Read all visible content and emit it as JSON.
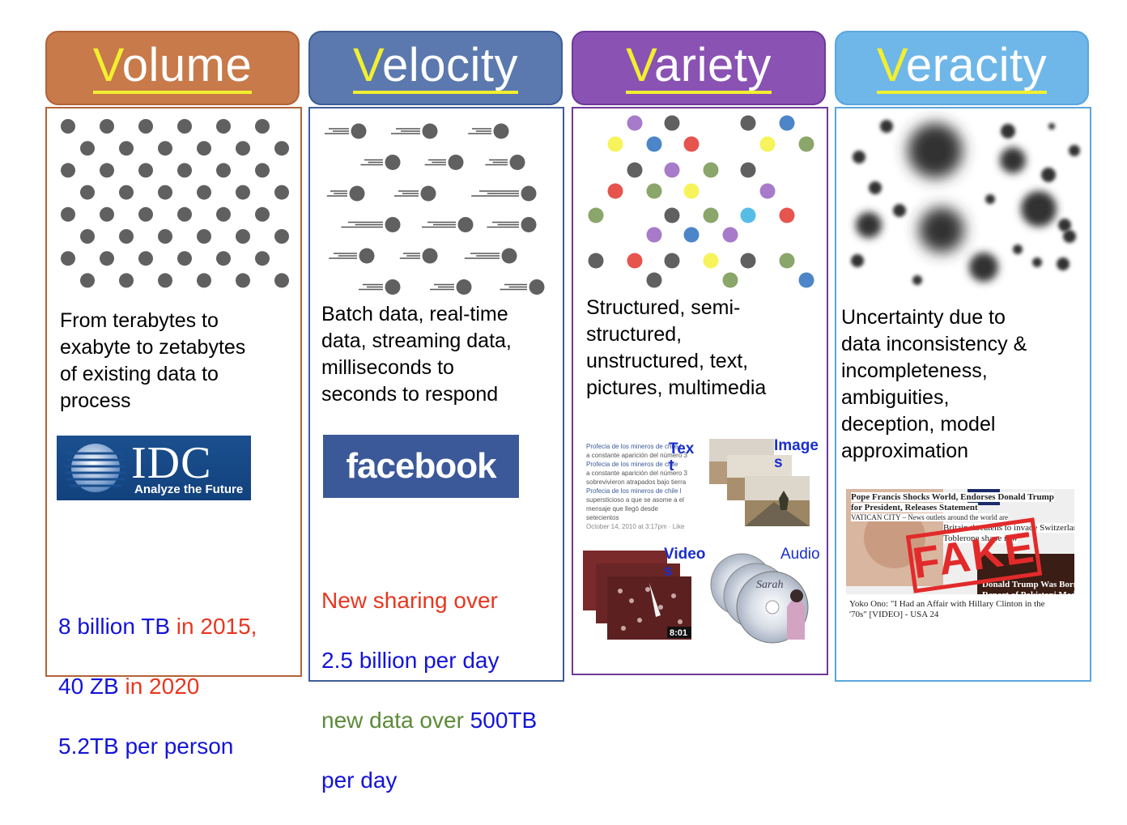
{
  "colors": {
    "volume": "#c87a4a",
    "velocity": "#5b79ae",
    "variety": "#8a52b3",
    "veracity": "#6fb7e9",
    "initial_yellow": "#f2ef2e",
    "text_blue": "#1414d8",
    "text_red": "#e8361f",
    "text_green": "#5b8a38"
  },
  "columns": [
    {
      "key": "volume",
      "initial": "V",
      "rest": "olume",
      "description": "From terabytes to\nexabyte to zetabytes\nof  existing data to\nprocess",
      "logo": {
        "name": "IDC",
        "tagline": "Analyze the Future"
      },
      "stats": {
        "line1_a": "8 billion TB",
        "line1_b": " in 2015,",
        "line2_a": "40 ZB",
        "line2_b": " in 2020",
        "line3": "5.2TB per person"
      }
    },
    {
      "key": "velocity",
      "initial": "V",
      "rest": "elocity",
      "description": "Batch data, real-time\ndata, streaming data,\nmilliseconds to\nseconds  to respond",
      "logo": {
        "name": "facebook"
      },
      "stats": {
        "line1": "New sharing over",
        "line2": "2.5  billion per day",
        "line3_a": "new data over",
        "line3_b": " 500TB",
        "line4": "per day"
      }
    },
    {
      "key": "variety",
      "initial": "V",
      "rest": "ariety",
      "description": "Structured, semi-\nstructured,\nunstructured,  text,\npictures,  multimedia",
      "media_labels": {
        "text_a": "Tex",
        "text_b": "t",
        "images_a": "Image",
        "images_b": "s",
        "video_a": "Video",
        "video_b": "s",
        "audio": "Audio",
        "video_time": "8:01",
        "cd_title": "Sarah"
      },
      "text_snippet": {
        "lines": [
          "Profecia de los mineros de chile l",
          "a constante aparición del número 3",
          "Profecia de los mineros de chile",
          "a constante aparición del número 3",
          "sobrevivieron atrapados bajo tierra",
          "Profecia de los mineros de chile l",
          "supersticioso a que se asome a el",
          "mensaje que llegó desde setecientos",
          "October 14, 2010 at 3:17pm · Like"
        ]
      }
    },
    {
      "key": "veracity",
      "initial": "V",
      "rest": "eracity",
      "description": "Uncertainty due to\ndata inconsistency &\nincompleteness,\nambiguities,\ndeception,  model\napproximation",
      "fake_stamp": "FAKE",
      "news_lines": [
        "Pope Francis Shocks World, Endorses Donald Trump",
        "for President, Releases Statement",
        "VATICAN CITY – News outlets around the world are",
        "Britain threatens to invade Switzerland over",
        "Toblerone shape row",
        "Yoko Ono: \"I Had an Affair with Hillary Clinton in the",
        "'70s\" [VIDEO] - USA 24",
        "Donald Trump Was Born in Pakistan",
        "Report of Pakistani Media"
      ]
    }
  ]
}
